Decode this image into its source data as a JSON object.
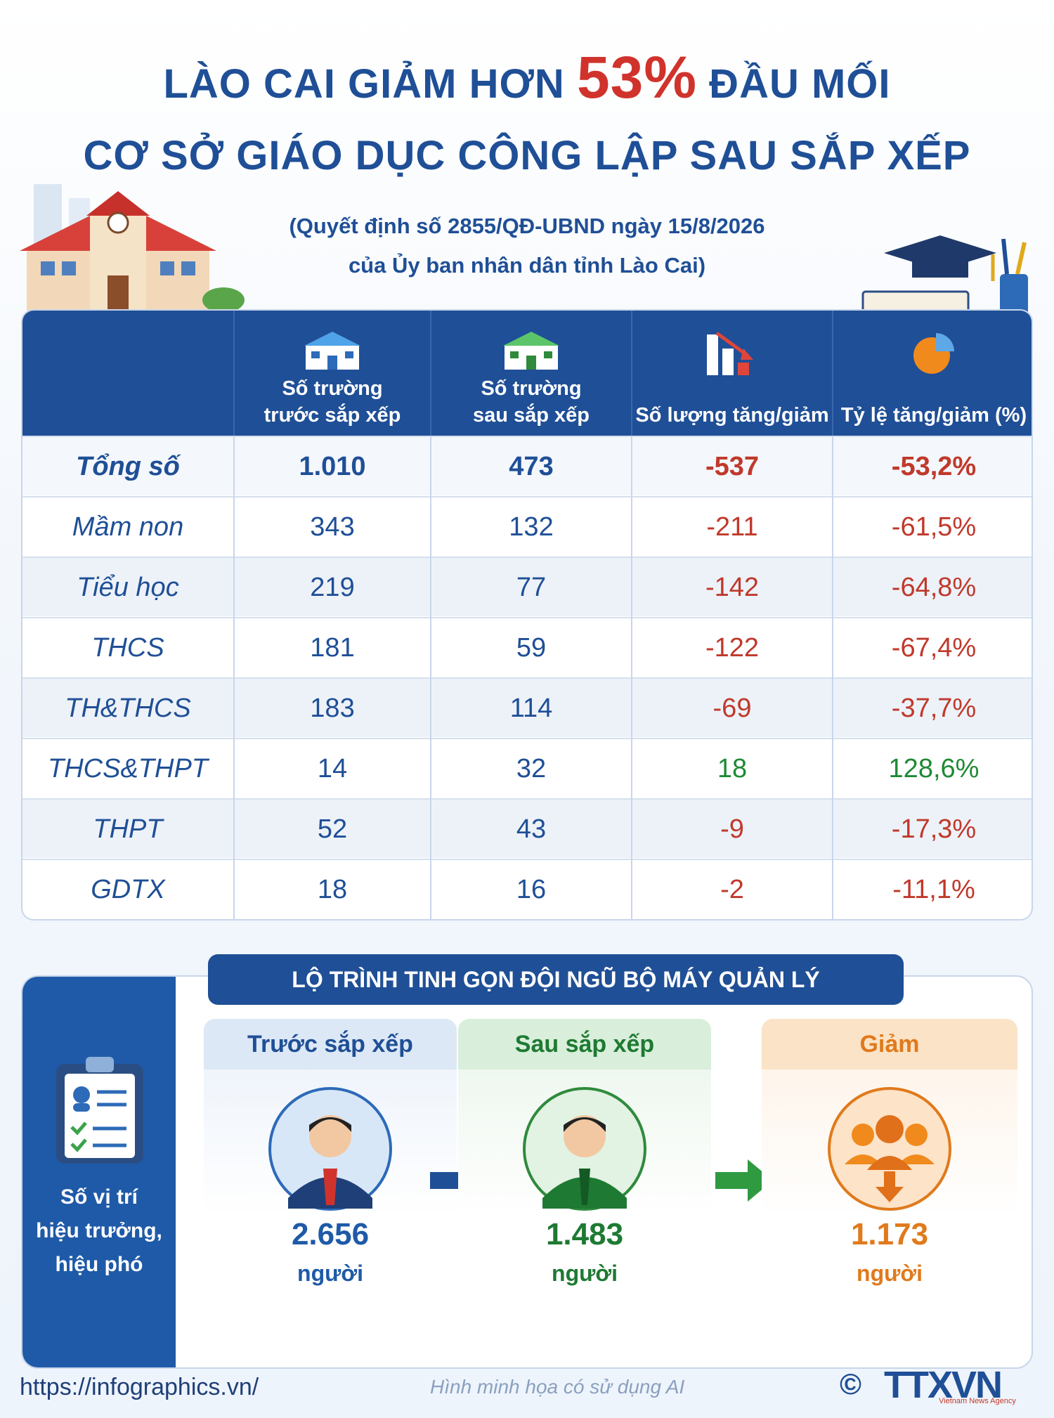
{
  "title": {
    "line1_before": "LÀO CAI GIẢM HƠN ",
    "line1_highlight": "53%",
    "line1_after": " ĐẦU MỐI",
    "line2": "CƠ SỞ GIÁO DỤC CÔNG LẬP SAU SẮP XẾP"
  },
  "subtitle": {
    "line1": "(Quyết định số 2855/QĐ-UBND ngày 15/8/2026",
    "line2": "của Ủy ban nhân dân tỉnh Lào Cai)"
  },
  "table": {
    "headers": [
      {
        "label1": "Số trường",
        "label2": "trước sắp xếp",
        "icon": "school-blue-icon"
      },
      {
        "label1": "Số trường",
        "label2": "sau sắp xếp",
        "icon": "school-green-icon"
      },
      {
        "label1": "",
        "label2": "Số lượng tăng/giảm",
        "icon": "bar-down-icon"
      },
      {
        "label1": "",
        "label2": "Tỷ lệ tăng/giảm (%)",
        "icon": "pie-icon"
      }
    ],
    "rows": [
      {
        "name": "Tổng số",
        "before": "1.010",
        "after": "473",
        "change": "-537",
        "rate": "-53,2%",
        "sign": "neg"
      },
      {
        "name": "Mầm non",
        "before": "343",
        "after": "132",
        "change": "-211",
        "rate": "-61,5%",
        "sign": "neg"
      },
      {
        "name": "Tiểu học",
        "before": "219",
        "after": "77",
        "change": "-142",
        "rate": "-64,8%",
        "sign": "neg"
      },
      {
        "name": "THCS",
        "before": "181",
        "after": "59",
        "change": "-122",
        "rate": "-67,4%",
        "sign": "neg"
      },
      {
        "name": "TH&THCS",
        "before": "183",
        "after": "114",
        "change": "-69",
        "rate": "-37,7%",
        "sign": "neg"
      },
      {
        "name": "THCS&THPT",
        "before": "14",
        "after": "32",
        "change": "18",
        "rate": "128,6%",
        "sign": "pos"
      },
      {
        "name": "THPT",
        "before": "52",
        "after": "43",
        "change": "-9",
        "rate": "-17,3%",
        "sign": "neg"
      },
      {
        "name": "GDTX",
        "before": "18",
        "after": "16",
        "change": "-2",
        "rate": "-11,1%",
        "sign": "neg"
      }
    ]
  },
  "management": {
    "banner": "LỘ TRÌNH TINH GỌN ĐỘI NGŨ BỘ MÁY QUẢN LÝ",
    "sidebar_line1": "Số vị trí",
    "sidebar_line2": "hiệu trưởng,",
    "sidebar_line3": "hiệu phó",
    "before": {
      "label": "Trước sắp xếp",
      "value": "2.656",
      "unit": "người"
    },
    "after": {
      "label": "Sau sắp xếp",
      "value": "1.483",
      "unit": "người"
    },
    "reduced": {
      "label": "Giảm",
      "value": "1.173",
      "unit": "người"
    }
  },
  "footer": {
    "url": "https://infographics.vn/",
    "note": "Hình minh họa có sử dụng AI",
    "copyright": "©",
    "logo": "TTXVN",
    "logo_sub": "Vietnam News Agency"
  },
  "colors": {
    "primary": "#1f4f96",
    "negative": "#c0392b",
    "positive": "#1e8a34",
    "orange": "#e07a1c"
  }
}
